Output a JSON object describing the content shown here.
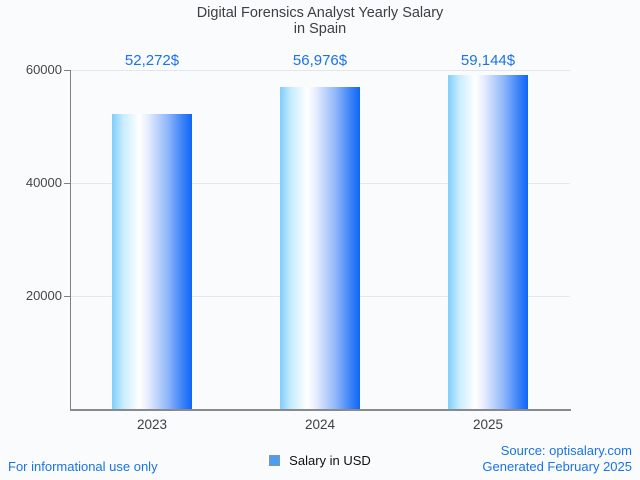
{
  "title": {
    "line1": "Digital Forensics Analyst Yearly Salary",
    "line2": "in Spain"
  },
  "chart_data": {
    "type": "bar",
    "title": "Digital Forensics Analyst Yearly Salary in Spain",
    "categories": [
      "2023",
      "2024",
      "2025"
    ],
    "values": [
      52272,
      56976,
      59144
    ],
    "value_labels": [
      "52,272$",
      "56,976$",
      "59,144$"
    ],
    "series": [
      {
        "name": "Salary in USD",
        "values": [
          52272,
          56976,
          59144
        ]
      }
    ],
    "xlabel": "",
    "ylabel": "",
    "ylim": [
      0,
      60000
    ],
    "yticks": [
      20000,
      40000,
      60000
    ],
    "ytick_labels": [
      "20000",
      "40000",
      "60000"
    ],
    "grid": true,
    "legend_position": "bottom",
    "bar_color_gradient": [
      "#7fcdfb",
      "#ffffff",
      "#0f66f6"
    ]
  },
  "legend": {
    "label": "Salary in USD",
    "swatch_color": "#4d9df1"
  },
  "footer": {
    "disclaimer": "For informational use only",
    "source": "Source: optisalary.com",
    "generated": "Generated February 2025"
  },
  "colors": {
    "accent_text": "#1a73e8",
    "title_text": "#3d4043",
    "axis_line": "#808080",
    "gridline": "#e4e7ea",
    "background": "#fafbfd"
  }
}
